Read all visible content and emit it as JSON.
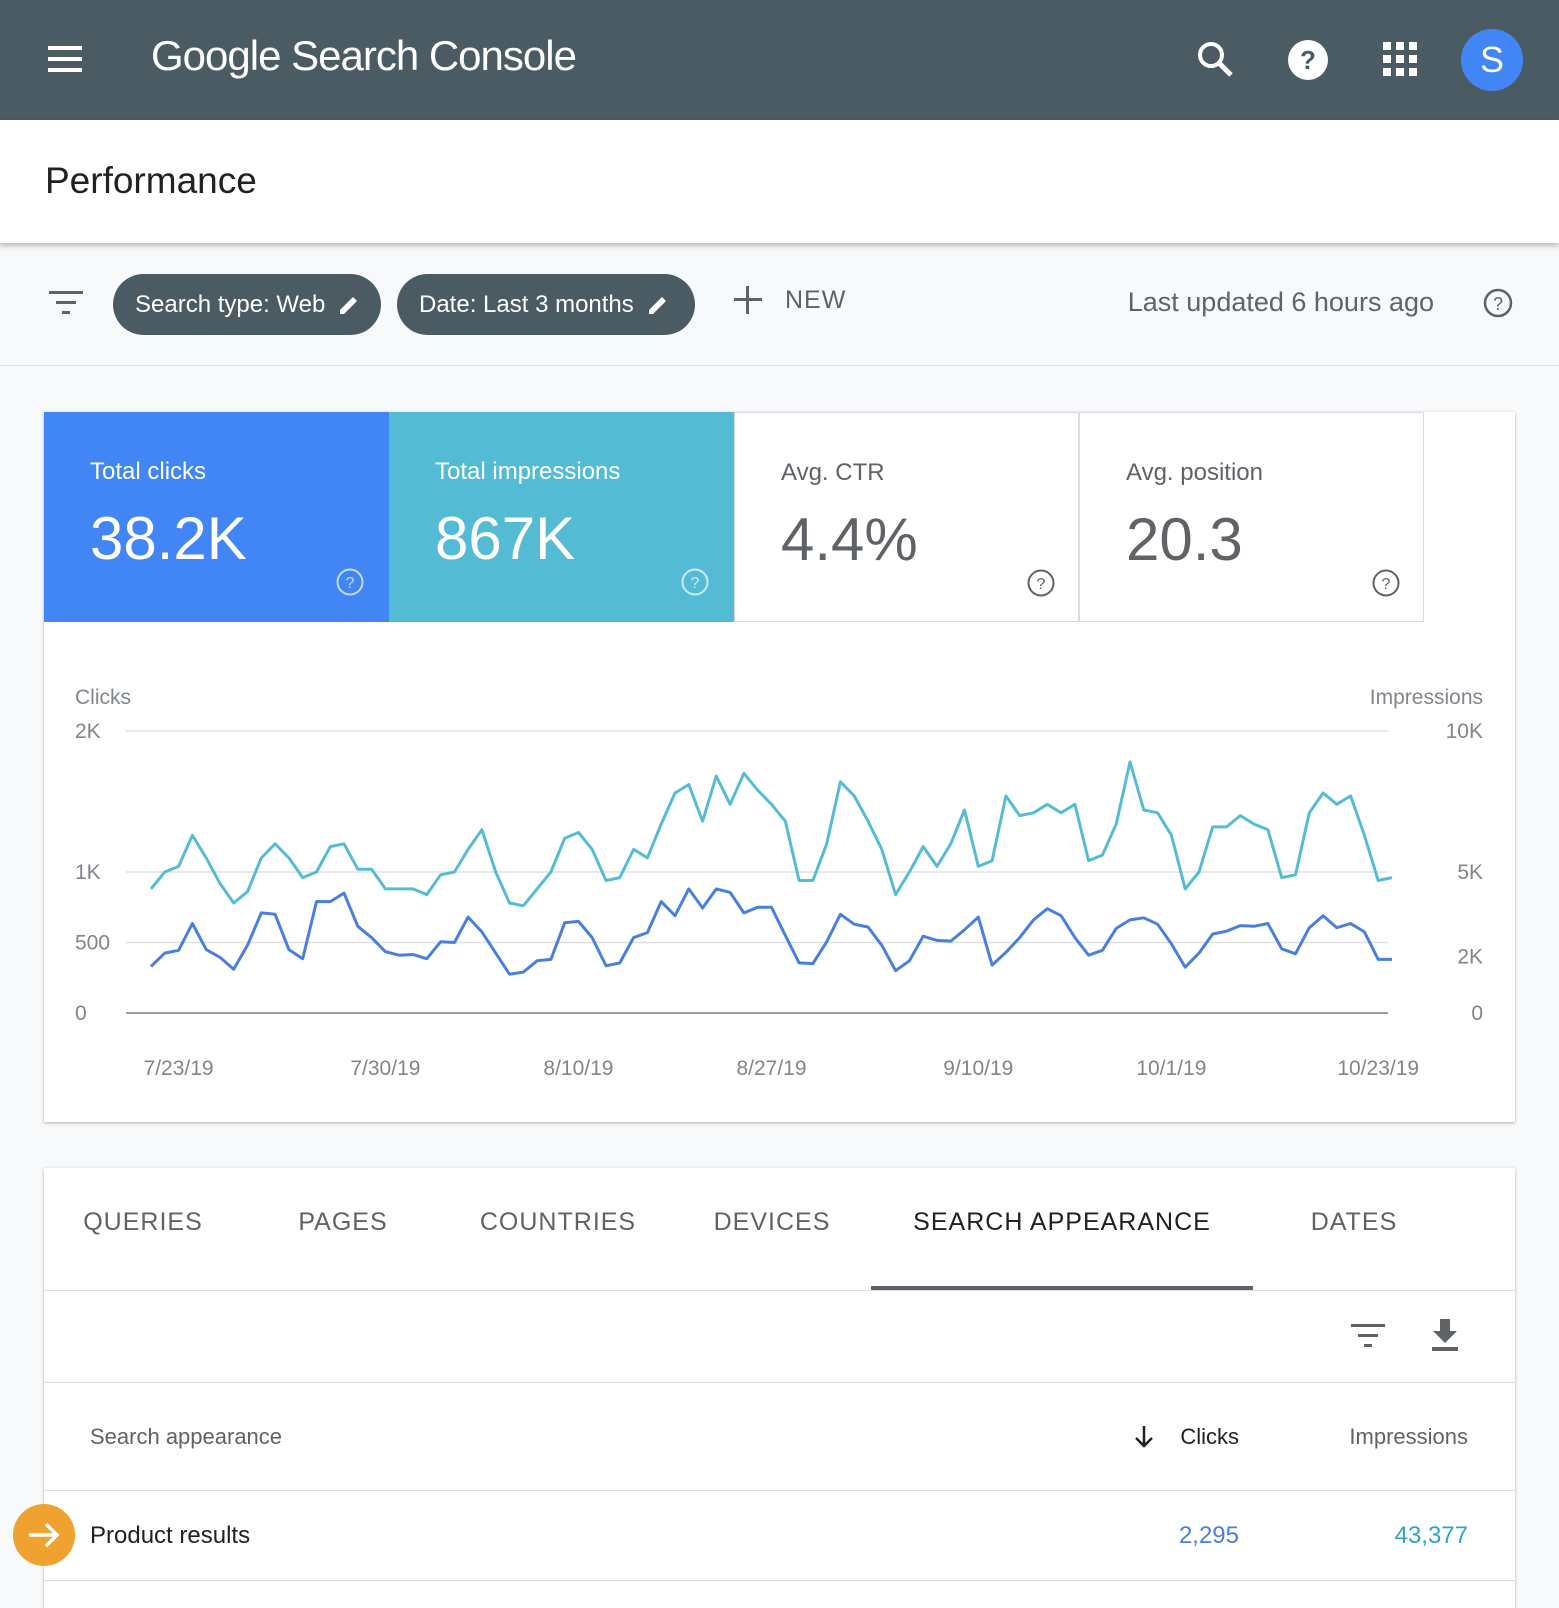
{
  "header": {
    "title": "Google Search Console",
    "avatar": "S"
  },
  "page_title": "Performance",
  "filters": {
    "chips": [
      "Search type: Web",
      "Date: Last 3 months"
    ],
    "new": "NEW",
    "last_updated": "Last updated 6 hours ago"
  },
  "metrics": [
    {
      "label": "Total clicks",
      "value": "38.2K"
    },
    {
      "label": "Total impressions",
      "value": "867K"
    },
    {
      "label": "Avg. CTR",
      "value": "4.4%"
    },
    {
      "label": "Avg. position",
      "value": "20.3"
    }
  ],
  "chart_data": {
    "type": "line",
    "y_label": "Clicks",
    "y2_label": "Impressions",
    "categories": [
      null,
      null,
      "7/23/19",
      null,
      null,
      null,
      null,
      null,
      null,
      null,
      null,
      null,
      null,
      null,
      null,
      null,
      null,
      "7/30/19",
      null,
      null,
      null,
      null,
      null,
      null,
      null,
      null,
      null,
      null,
      null,
      null,
      null,
      "8/10/19",
      null,
      null,
      null,
      null,
      null,
      null,
      null,
      null,
      null,
      null,
      null,
      null,
      null,
      "8/27/19",
      null,
      null,
      null,
      null,
      null,
      null,
      null,
      null,
      null,
      null,
      null,
      null,
      null,
      null,
      "9/10/19",
      null,
      null,
      null,
      null,
      null,
      null,
      null,
      null,
      null,
      null,
      null,
      null,
      null,
      "10/1/19",
      null,
      null,
      null,
      null,
      null,
      null,
      null,
      null,
      null,
      null,
      null,
      null,
      null,
      null,
      "10/23/19",
      null
    ],
    "ylim": [
      0,
      2000
    ],
    "yticks": [
      0,
      500,
      {
        "value": 1000,
        "label": "1K"
      },
      {
        "value": 2000,
        "label": "2K"
      }
    ],
    "y2lim": [
      0,
      10000
    ],
    "y2ticks": [
      0,
      {
        "value": 2000,
        "label": "2K"
      },
      {
        "value": 5000,
        "label": "5K"
      },
      {
        "value": 10000,
        "label": "10K"
      }
    ],
    "grid": true,
    "series": [
      {
        "name": "Clicks",
        "color": "#4a7fdf",
        "values": [
          330,
          425,
          445,
          635,
          450,
          395,
          310,
          480,
          710,
          700,
          450,
          385,
          790,
          790,
          850,
          615,
          535,
          435,
          410,
          415,
          385,
          505,
          500,
          680,
          575,
          425,
          275,
          290,
          370,
          380,
          640,
          650,
          535,
          335,
          355,
          535,
          570,
          790,
          690,
          880,
          745,
          880,
          855,
          710,
          750,
          750,
          550,
          355,
          350,
          505,
          700,
          630,
          610,
          480,
          300,
          370,
          545,
          515,
          510,
          590,
          680,
          340,
          430,
          535,
          660,
          740,
          690,
          535,
          410,
          445,
          600,
          660,
          675,
          630,
          490,
          325,
          425,
          560,
          580,
          620,
          615,
          635,
          455,
          420,
          605,
          690,
          605,
          635,
          575,
          380,
          380
        ]
      },
      {
        "name": "Impressions",
        "color": "#56bcd3",
        "axis": "y2",
        "values": [
          4400,
          5000,
          5200,
          6300,
          5500,
          4600,
          3900,
          4300,
          5500,
          6000,
          5500,
          4800,
          5000,
          5900,
          6000,
          5100,
          5100,
          4400,
          4400,
          4400,
          4200,
          4900,
          5000,
          5800,
          6500,
          5000,
          3900,
          3800,
          4400,
          5000,
          6200,
          6400,
          5800,
          4700,
          4800,
          5800,
          5500,
          6700,
          7800,
          8100,
          6800,
          8400,
          7400,
          8500,
          7900,
          7400,
          6800,
          4700,
          4700,
          6000,
          8200,
          7700,
          6800,
          5800,
          4200,
          5000,
          5900,
          5200,
          6000,
          7200,
          5200,
          5400,
          7700,
          7000,
          7100,
          7400,
          7100,
          7400,
          5400,
          5600,
          6700,
          8900,
          7200,
          7100,
          6300,
          4400,
          5000,
          6600,
          6600,
          7000,
          6700,
          6500,
          4800,
          4900,
          7100,
          7800,
          7400,
          7700,
          6300,
          4700,
          4800
        ]
      }
    ]
  },
  "tabs": {
    "items": [
      "QUERIES",
      "PAGES",
      "COUNTRIES",
      "DEVICES",
      "SEARCH APPEARANCE",
      "DATES"
    ],
    "active": 4
  },
  "table": {
    "columns": [
      "Search appearance",
      "Clicks",
      "Impressions"
    ],
    "rows": [
      [
        "Product results",
        "2,295",
        "43,377"
      ]
    ]
  }
}
